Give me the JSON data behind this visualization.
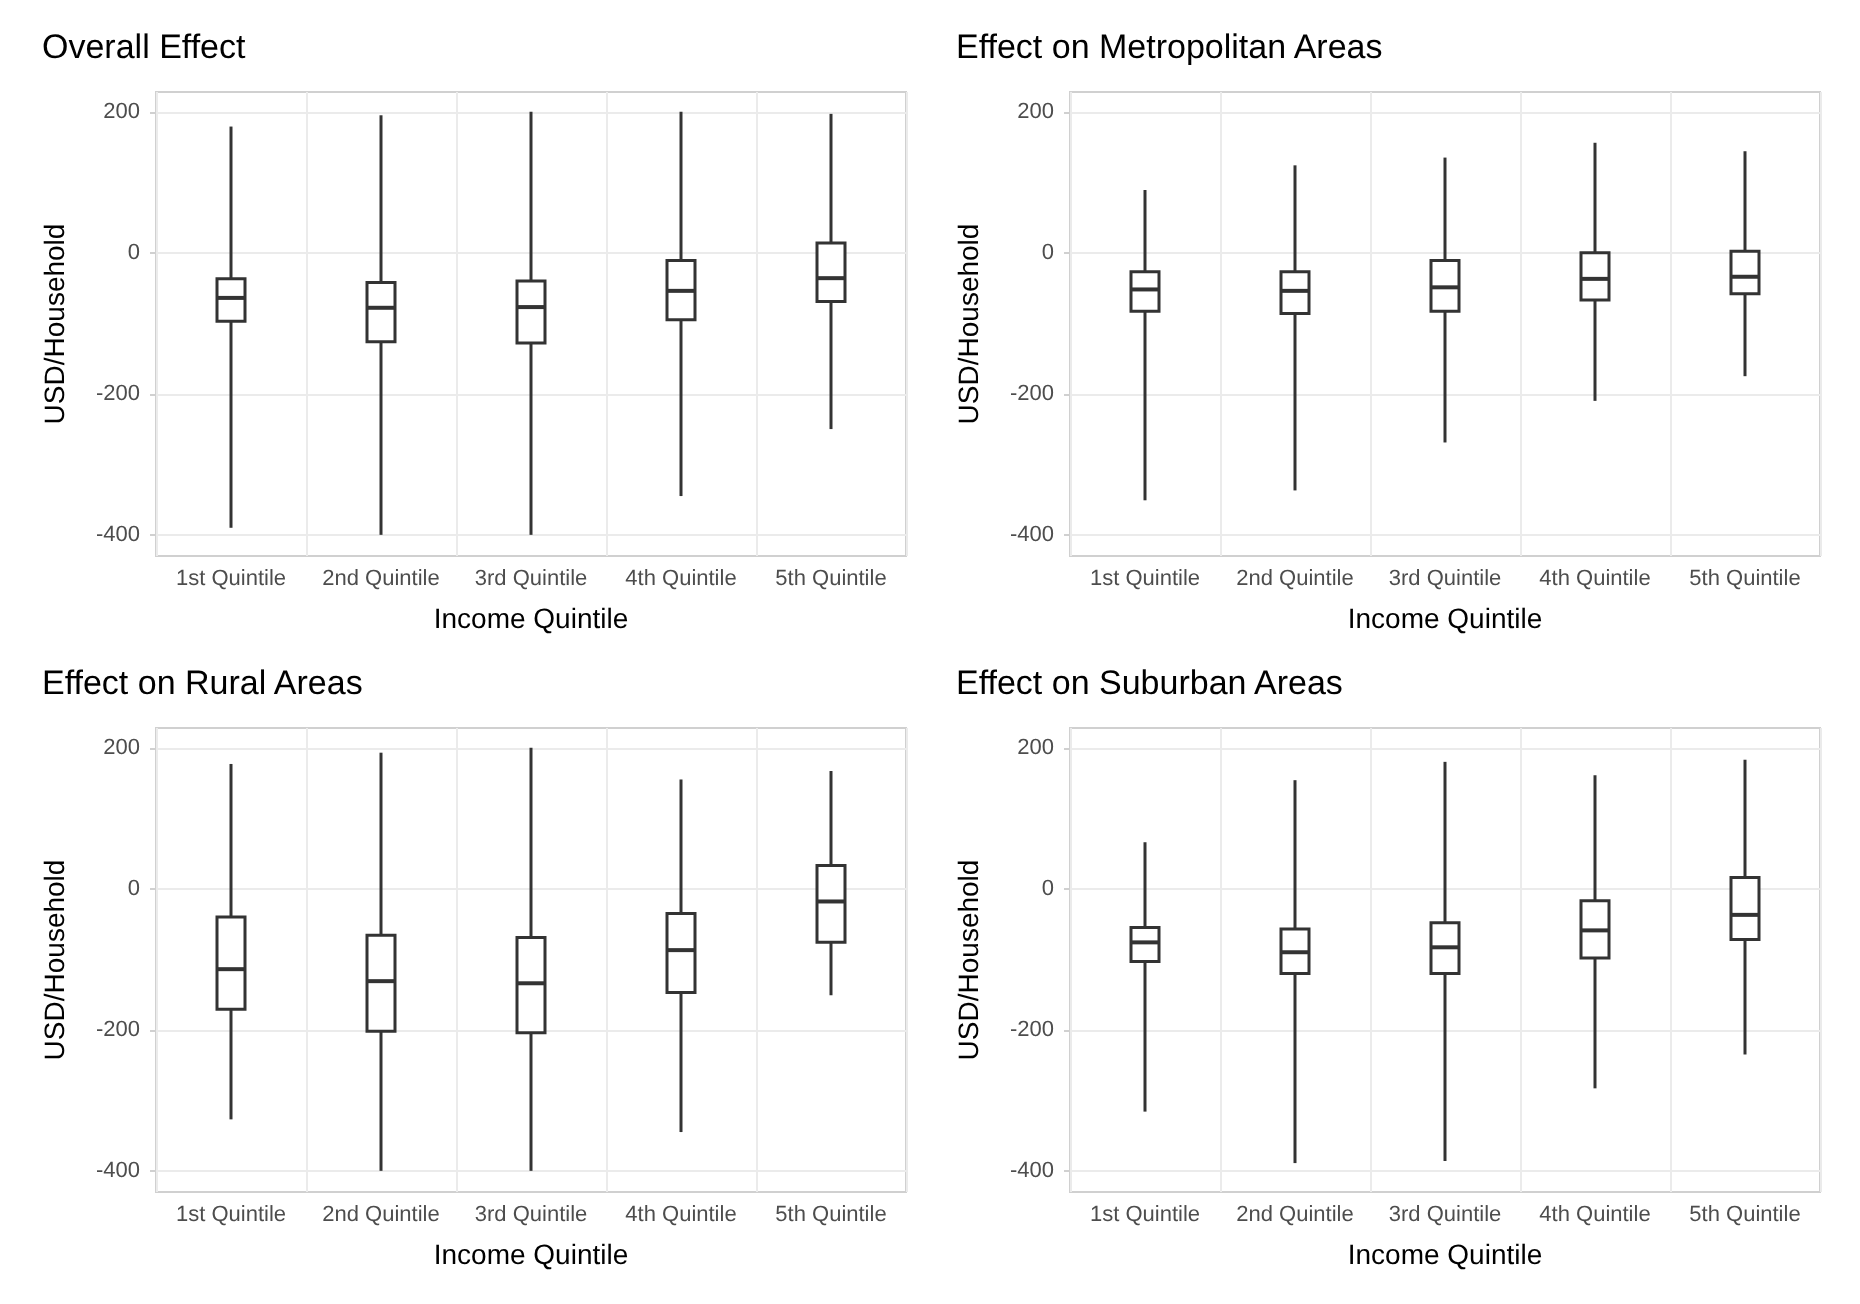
{
  "chart_data": [
    {
      "type": "box",
      "title": "Overall Effect",
      "xlabel": "Income Quintile",
      "ylabel": "USD/Household",
      "categories": [
        "1st Quintile",
        "2nd Quintile",
        "3rd Quintile",
        "4th Quintile",
        "5th Quintile"
      ],
      "boxes": [
        {
          "low": -390,
          "q1": -97,
          "median": -64,
          "q3": -37,
          "high": 179
        },
        {
          "low": -400,
          "q1": -126,
          "median": -78,
          "q3": -42,
          "high": 195
        },
        {
          "low": -400,
          "q1": -128,
          "median": -77,
          "q3": -40,
          "high": 200
        },
        {
          "low": -345,
          "q1": -95,
          "median": -54,
          "q3": -11,
          "high": 200
        },
        {
          "low": -250,
          "q1": -69,
          "median": -36,
          "q3": 14,
          "high": 197
        }
      ],
      "ylim": [
        -430,
        228
      ],
      "yticks": [
        -400,
        -200,
        0,
        200
      ],
      "grid": true
    },
    {
      "type": "box",
      "title": "Effect on Metropolitan Areas",
      "xlabel": "Income Quintile",
      "ylabel": "USD/Household",
      "categories": [
        "1st Quintile",
        "2nd Quintile",
        "3rd Quintile",
        "4th Quintile",
        "5th Quintile"
      ],
      "boxes": [
        {
          "low": -351,
          "q1": -83,
          "median": -52,
          "q3": -27,
          "high": 89
        },
        {
          "low": -337,
          "q1": -86,
          "median": -54,
          "q3": -27,
          "high": 124
        },
        {
          "low": -269,
          "q1": -83,
          "median": -49,
          "q3": -11,
          "high": 135
        },
        {
          "low": -210,
          "q1": -67,
          "median": -37,
          "q3": 0,
          "high": 156
        },
        {
          "low": -175,
          "q1": -58,
          "median": -34,
          "q3": 2,
          "high": 144
        }
      ],
      "ylim": [
        -430,
        228
      ],
      "yticks": [
        -400,
        -200,
        0,
        200
      ],
      "grid": true
    },
    {
      "type": "box",
      "title": "Effect on Rural Areas",
      "xlabel": "Income Quintile",
      "ylabel": "USD/Household",
      "categories": [
        "1st Quintile",
        "2nd Quintile",
        "3rd Quintile",
        "4th Quintile",
        "5th Quintile"
      ],
      "boxes": [
        {
          "low": -327,
          "q1": -171,
          "median": -114,
          "q3": -40,
          "high": 177
        },
        {
          "low": -400,
          "q1": -202,
          "median": -131,
          "q3": -66,
          "high": 193
        },
        {
          "low": -400,
          "q1": -204,
          "median": -134,
          "q3": -69,
          "high": 200
        },
        {
          "low": -345,
          "q1": -147,
          "median": -87,
          "q3": -35,
          "high": 155
        },
        {
          "low": -151,
          "q1": -76,
          "median": -18,
          "q3": 33,
          "high": 167
        }
      ],
      "ylim": [
        -430,
        228
      ],
      "yticks": [
        -400,
        -200,
        0,
        200
      ],
      "grid": true
    },
    {
      "type": "box",
      "title": "Effect on Suburban Areas",
      "xlabel": "Income Quintile",
      "ylabel": "USD/Household",
      "categories": [
        "1st Quintile",
        "2nd Quintile",
        "3rd Quintile",
        "4th Quintile",
        "5th Quintile"
      ],
      "boxes": [
        {
          "low": -316,
          "q1": -103,
          "median": -76,
          "q3": -55,
          "high": 66
        },
        {
          "low": -389,
          "q1": -120,
          "median": -90,
          "q3": -57,
          "high": 154
        },
        {
          "low": -386,
          "q1": -120,
          "median": -83,
          "q3": -48,
          "high": 180
        },
        {
          "low": -283,
          "q1": -98,
          "median": -59,
          "q3": -17,
          "high": 161
        },
        {
          "low": -235,
          "q1": -72,
          "median": -37,
          "q3": 16,
          "high": 183
        }
      ],
      "ylim": [
        -430,
        228
      ],
      "yticks": [
        -400,
        -200,
        0,
        200
      ],
      "grid": true
    }
  ]
}
